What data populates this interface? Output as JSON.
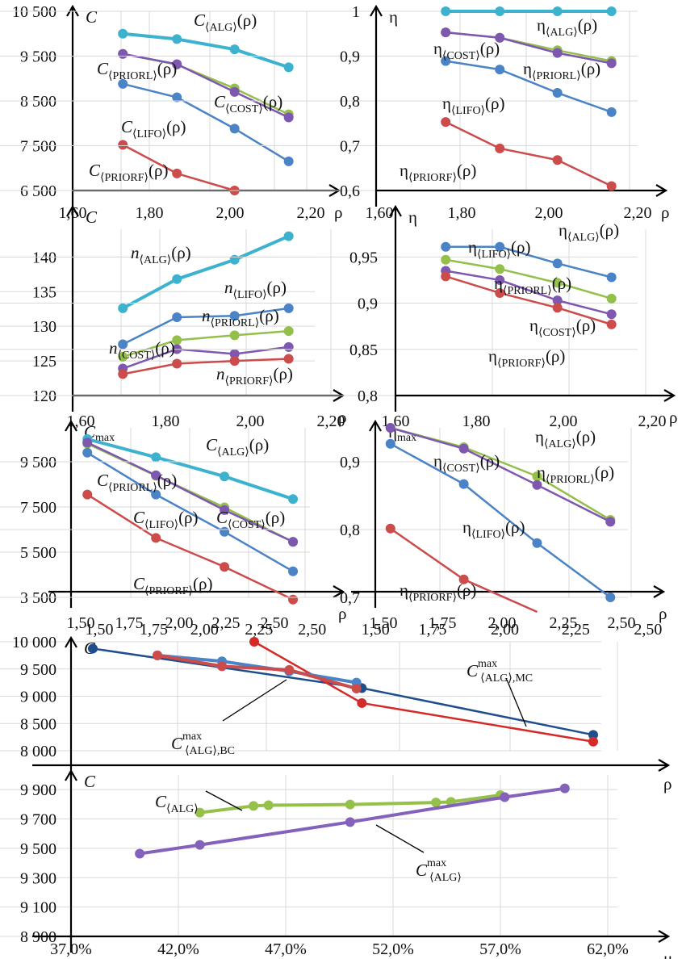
{
  "colors": {
    "ALG": "#3db2cf",
    "PRIORL": "#7e57b0",
    "COST": "#93bf4a",
    "LIFO": "#4a83c6",
    "PRIORF": "#cc4b4b",
    "MC": "#1f4e8c",
    "BC": "#d42a2a",
    "max_purple": "#8461bb",
    "alg_green": "#95c14a"
  },
  "chart_data": [
    {
      "id": "c1",
      "type": "line",
      "ylabel": "C",
      "xlabel": "ρ",
      "x": [
        1.69,
        1.84,
        2.0,
        2.15
      ],
      "xticks": [
        "1,60",
        "1,80",
        "2,00",
        "2,20"
      ],
      "xlim": [
        1.6,
        2.2
      ],
      "yticks": [
        "6 500",
        "7 500",
        "8 500",
        "9 500",
        "10 500"
      ],
      "ylim": [
        6500,
        10500
      ],
      "series": [
        {
          "name": "ALG",
          "label": "C⟨ALG⟩(ρ)",
          "values": [
            10000,
            9880,
            9650,
            9250
          ]
        },
        {
          "name": "COST",
          "label": "C⟨COST⟩(ρ)",
          "values": [
            9550,
            9310,
            8780,
            8200
          ]
        },
        {
          "name": "PRIORL",
          "label": "C⟨PRIORL⟩(ρ)",
          "values": [
            9550,
            9320,
            8700,
            8130
          ]
        },
        {
          "name": "LIFO",
          "label": "C⟨LIFO⟩(ρ)",
          "values": [
            8880,
            8580,
            7880,
            7150
          ]
        },
        {
          "name": "PRIORF",
          "label": "C⟨PRIORF⟩(ρ)",
          "values": [
            7520,
            6880,
            6500
          ]
        }
      ]
    },
    {
      "id": "c2",
      "type": "line",
      "ylabel": "η",
      "xlabel": "ρ",
      "x": [
        1.69,
        1.84,
        2.0,
        2.15
      ],
      "xticks": [
        "1,60",
        "1,80",
        "2,00",
        "2,20"
      ],
      "xlim": [
        1.6,
        2.2
      ],
      "yticks": [
        "0,6",
        "0,7",
        "0,8",
        "0,9",
        "1"
      ],
      "ylim": [
        0.6,
        1.0
      ],
      "series": [
        {
          "name": "ALG",
          "label": "η⟨ALG⟩(ρ)",
          "values": [
            1.0,
            1.0,
            1.0,
            1.0
          ]
        },
        {
          "name": "COST",
          "label": "η⟨COST⟩(ρ)",
          "values": [
            0.953,
            0.941,
            0.913,
            0.889
          ]
        },
        {
          "name": "PRIORL",
          "label": "η⟨PRIORL⟩(ρ)",
          "values": [
            0.953,
            0.941,
            0.907,
            0.884
          ]
        },
        {
          "name": "LIFO",
          "label": "η⟨LIFO⟩(ρ)",
          "values": [
            0.889,
            0.87,
            0.818,
            0.775
          ]
        },
        {
          "name": "PRIORF",
          "label": "η⟨PRIORF⟩(ρ)",
          "values": [
            0.753,
            0.694,
            0.668,
            0.61
          ]
        }
      ]
    },
    {
      "id": "c3",
      "type": "line",
      "ylabel": "C",
      "xlabel": "ρ",
      "x": [
        1.69,
        1.84,
        2.0,
        2.15
      ],
      "xticks": [
        "1,60",
        "1,80",
        "2,00",
        "2,20"
      ],
      "xlim": [
        1.6,
        2.2
      ],
      "yticks": [
        "120",
        "125",
        "130",
        "135",
        "140"
      ],
      "ylim": [
        120,
        144
      ],
      "series": [
        {
          "name": "ALG",
          "label": "n⟨ALG⟩(ρ)",
          "values": [
            132.6,
            136.8,
            139.6,
            143.0
          ]
        },
        {
          "name": "LIFO",
          "label": "n⟨LIFO⟩(ρ)",
          "values": [
            127.4,
            131.3,
            131.5,
            132.6
          ]
        },
        {
          "name": "COST",
          "label": "n⟨COST⟩(ρ)",
          "values": [
            125.6,
            128.0,
            128.7,
            129.3
          ]
        },
        {
          "name": "PRIORL",
          "label": "n⟨PRIORL⟩(ρ)",
          "values": [
            123.9,
            126.7,
            126.0,
            127.0
          ]
        },
        {
          "name": "PRIORF",
          "label": "n⟨PRIORF⟩(ρ)",
          "values": [
            123.1,
            124.6,
            125.0,
            125.3
          ]
        }
      ]
    },
    {
      "id": "c4",
      "type": "line",
      "ylabel": "η",
      "xlabel": "ρ",
      "x": [
        1.69,
        1.84,
        2.0,
        2.15
      ],
      "xticks": [
        "1,60",
        "1,80",
        "2,00",
        "2,20"
      ],
      "xlim": [
        1.6,
        2.2
      ],
      "yticks": [
        "0,8",
        "0,85",
        "0,9",
        "0,95"
      ],
      "ylim": [
        0.8,
        0.98
      ],
      "series": [
        {
          "name": "LIFO",
          "label": "η⟨LIFO⟩(ρ)",
          "values": [
            0.961,
            0.961,
            0.943,
            0.928
          ]
        },
        {
          "name": "COST",
          "label": "η⟨COST⟩(ρ)",
          "values": [
            0.947,
            0.937,
            0.922,
            0.905
          ]
        },
        {
          "name": "PRIORL",
          "label": "η⟨PRIORL⟩(ρ)",
          "values": [
            0.935,
            0.925,
            0.903,
            0.888
          ]
        },
        {
          "name": "PRIORF",
          "label": "η⟨PRIORF⟩(ρ)",
          "values": [
            0.929,
            0.911,
            0.895,
            0.877
          ]
        }
      ],
      "extra_labels": [
        "η⟨ALG⟩(ρ)"
      ]
    },
    {
      "id": "c5",
      "type": "line",
      "ylabel": "Cmax",
      "xlabel": "ρ",
      "x": [
        1.53,
        1.84,
        2.15,
        2.46
      ],
      "xticks": [
        "1,50",
        "1,75",
        "2,00",
        "2,25",
        "2,50"
      ],
      "xlim": [
        1.5,
        2.5
      ],
      "yticks": [
        "3 500",
        "5 500",
        "7 500",
        "9 500"
      ],
      "ylim": [
        3500,
        11000
      ],
      "series": [
        {
          "name": "ALG",
          "label": "C⟨ALG⟩(ρ)",
          "values": [
            10500,
            9700,
            8850,
            7850
          ]
        },
        {
          "name": "COST",
          "label": "C⟨COST⟩(ρ)",
          "values": [
            10300,
            8880,
            7480,
            5950
          ]
        },
        {
          "name": "PRIORL",
          "label": "C⟨PRIORL⟩(ρ)",
          "values": [
            10350,
            8900,
            7360,
            5960
          ]
        },
        {
          "name": "LIFO",
          "label": "C⟨LIFO⟩(ρ)",
          "values": [
            9900,
            8050,
            6400,
            4650
          ]
        },
        {
          "name": "PRIORF",
          "label": "C⟨PRIORF⟩(ρ)",
          "values": [
            8050,
            6130,
            4850,
            3400
          ]
        }
      ]
    },
    {
      "id": "c6",
      "type": "line",
      "ylabel": "ηmax",
      "xlabel": "ρ",
      "x": [
        1.53,
        1.84,
        2.15,
        2.46
      ],
      "xticks": [
        "1,50",
        "1,75",
        "2,00",
        "2,25",
        "2,50"
      ],
      "xlim": [
        1.5,
        2.5
      ],
      "yticks": [
        "0,7",
        "0,8",
        "0,9"
      ],
      "ylim": [
        0.63,
        0.98
      ],
      "series": [
        {
          "name": "COST",
          "label": "η⟨COST⟩(ρ)",
          "values": [
            0.98,
            0.94,
            0.88,
            0.79
          ]
        },
        {
          "name": "PRIORL",
          "label": "η⟨PRIORL⟩(ρ)",
          "values": [
            0.98,
            0.937,
            0.862,
            0.786
          ]
        },
        {
          "name": "LIFO",
          "label": "η⟨LIFO⟩(ρ)",
          "values": [
            0.947,
            0.864,
            0.742,
            0.63
          ]
        },
        {
          "name": "PRIORF",
          "label": "η⟨PRIORF⟩(ρ)",
          "values": [
            0.772,
            0.667,
            0.6
          ]
        }
      ],
      "extra_labels": [
        "η⟨ALG⟩(ρ)"
      ]
    },
    {
      "id": "c7",
      "type": "line",
      "ylabel": "C",
      "xlabel": "ρ",
      "x": [
        1.5,
        1.8,
        2.05,
        2.3,
        2.54,
        2.8
      ],
      "yticks": [
        "8 000",
        "8 500",
        "9 000",
        "9 500",
        "10 000"
      ],
      "ylim": [
        7900,
        10300
      ],
      "series": [
        {
          "name": "MC",
          "label": "C^max⟨ALG⟩,MC",
          "points": [
            [
              1.0,
              10150
            ],
            [
              2.0,
              9280
            ],
            [
              2.86,
              8250
            ]
          ]
        },
        {
          "name": "BC",
          "label": "C^max⟨ALG⟩,BC",
          "points": [
            [
              1.6,
              10300
            ],
            [
              2.0,
              8950
            ],
            [
              2.86,
              8100
            ]
          ]
        },
        {
          "name": "ALG_blue",
          "points": [
            [
              1.24,
              10000
            ],
            [
              1.48,
              9870
            ],
            [
              1.73,
              9650
            ],
            [
              1.98,
              9400
            ]
          ]
        },
        {
          "name": "ALG_red",
          "points": [
            [
              1.24,
              10000
            ],
            [
              1.48,
              9760
            ],
            [
              1.73,
              9680
            ],
            [
              1.98,
              9270
            ]
          ]
        }
      ]
    },
    {
      "id": "c8",
      "type": "line",
      "ylabel": "C",
      "xlabel": "μ",
      "xticks": [
        "37,0%",
        "42,0%",
        "47,0%",
        "52,0%",
        "57,0%",
        "62,0%"
      ],
      "xlim": [
        37,
        62
      ],
      "yticks": [
        "8 900",
        "9 100",
        "9 300",
        "9 500",
        "9 700",
        "9 900"
      ],
      "ylim": [
        8900,
        10100
      ],
      "series": [
        {
          "name": "C_ALG",
          "label": "C⟨ALG⟩",
          "points": [
            [
              43.0,
              9820
            ],
            [
              45.5,
              9870
            ],
            [
              46.2,
              9875
            ],
            [
              50.0,
              9880
            ],
            [
              54.0,
              9895
            ],
            [
              54.7,
              9900
            ],
            [
              57.0,
              9950
            ]
          ]
        },
        {
          "name": "Cmax_ALG",
          "label": "C^max⟨ALG⟩",
          "points": [
            [
              40.2,
              9515
            ],
            [
              43.0,
              9580
            ],
            [
              50.0,
              9750
            ],
            [
              57.2,
              9935
            ],
            [
              60.0,
              10000
            ]
          ]
        }
      ]
    }
  ]
}
